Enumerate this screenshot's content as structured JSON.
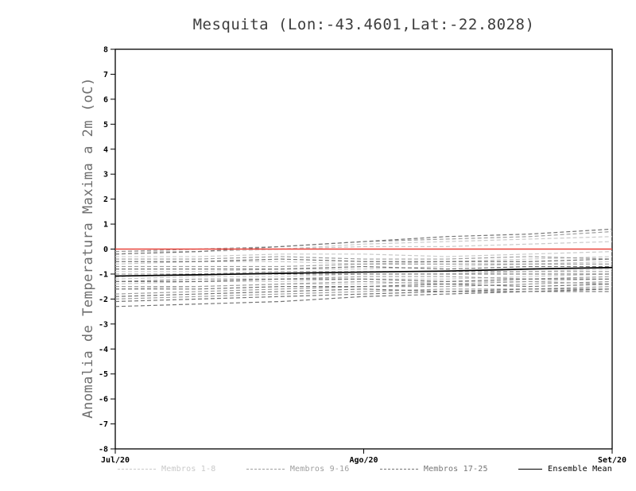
{
  "chart_data": {
    "type": "line",
    "title": "Mesquita (Lon:-43.4601,Lat:-22.8028)",
    "ylabel": "Anomalia de Temperatura Maxima a 2m (oC)",
    "ylim": [
      -8,
      8
    ],
    "ytick_step": 1,
    "x_range": [
      0,
      1
    ],
    "x_ticks": [
      "Jul/20",
      "Ago/20",
      "Set/20"
    ],
    "x_tick_positions": [
      0,
      0.5,
      1
    ],
    "grid": false,
    "legend_position": "bottom",
    "zero_line": {
      "y": 0,
      "color": "#e8423a"
    },
    "groups": [
      {
        "name": "Membros 1-8",
        "color": "#c9c9c9",
        "dash": "5 3",
        "members": [
          [
            -0.1,
            -0.1,
            0.0,
            0.1,
            0.1,
            0.2,
            0.3
          ],
          [
            -0.3,
            -0.3,
            -0.2,
            -0.2,
            -0.3,
            -0.2,
            -0.1
          ],
          [
            -0.6,
            -0.5,
            -0.5,
            -0.6,
            -0.5,
            -0.4,
            -0.3
          ],
          [
            -0.9,
            -0.9,
            -0.8,
            -0.8,
            -0.7,
            -0.6,
            -0.5
          ],
          [
            -1.2,
            -1.1,
            -1.1,
            -1.0,
            -1.0,
            -0.9,
            -0.8
          ],
          [
            -1.4,
            -1.3,
            -1.3,
            -1.2,
            -1.2,
            -1.1,
            -1.0
          ],
          [
            -1.6,
            -1.5,
            -1.4,
            -1.4,
            -1.3,
            -1.3,
            -1.2
          ],
          [
            -0.2,
            -0.1,
            0.0,
            0.2,
            0.3,
            0.4,
            0.5
          ]
        ]
      },
      {
        "name": "Membros 9-16",
        "color": "#9e9e9e",
        "dash": "5 3",
        "members": [
          [
            -0.1,
            0.0,
            0.1,
            0.3,
            0.4,
            0.5,
            0.7
          ],
          [
            -0.4,
            -0.4,
            -0.3,
            -0.4,
            -0.4,
            -0.3,
            -0.4
          ],
          [
            -0.7,
            -0.7,
            -0.7,
            -0.6,
            -0.6,
            -0.6,
            -0.6
          ],
          [
            -1.0,
            -1.0,
            -0.9,
            -0.9,
            -0.9,
            -0.9,
            -0.9
          ],
          [
            -1.3,
            -1.2,
            -1.2,
            -1.1,
            -1.1,
            -1.2,
            -1.1
          ],
          [
            -1.5,
            -1.5,
            -1.4,
            -1.3,
            -1.4,
            -1.3,
            -1.4
          ],
          [
            -1.8,
            -1.7,
            -1.6,
            -1.5,
            -1.5,
            -1.4,
            -1.3
          ],
          [
            -2.0,
            -1.9,
            -1.8,
            -1.7,
            -1.6,
            -1.6,
            -1.5
          ]
        ]
      },
      {
        "name": "Membros 17-25",
        "color": "#757575",
        "dash": "5 3",
        "members": [
          [
            -0.2,
            -0.1,
            0.1,
            0.3,
            0.5,
            0.6,
            0.8
          ],
          [
            -0.5,
            -0.5,
            -0.4,
            -0.5,
            -0.5,
            -0.5,
            -0.4
          ],
          [
            -0.8,
            -0.8,
            -0.8,
            -0.7,
            -0.8,
            -0.7,
            -0.7
          ],
          [
            -1.1,
            -1.0,
            -1.0,
            -1.0,
            -1.0,
            -1.0,
            -1.0
          ],
          [
            -1.3,
            -1.3,
            -1.2,
            -1.2,
            -1.3,
            -1.2,
            -1.2
          ],
          [
            -1.6,
            -1.6,
            -1.5,
            -1.5,
            -1.4,
            -1.5,
            -1.4
          ],
          [
            -1.9,
            -1.8,
            -1.7,
            -1.6,
            -1.7,
            -1.6,
            -1.6
          ],
          [
            -2.1,
            -2.0,
            -1.9,
            -1.8,
            -1.7,
            -1.7,
            -1.6
          ],
          [
            -2.3,
            -2.2,
            -2.1,
            -1.9,
            -1.8,
            -1.7,
            -1.7
          ]
        ]
      }
    ],
    "ensemble_mean": {
      "name": "Ensemble Mean",
      "color": "#000000",
      "values": [
        -1.08,
        -1.03,
        -0.97,
        -0.92,
        -0.88,
        -0.8,
        -0.74
      ]
    }
  }
}
